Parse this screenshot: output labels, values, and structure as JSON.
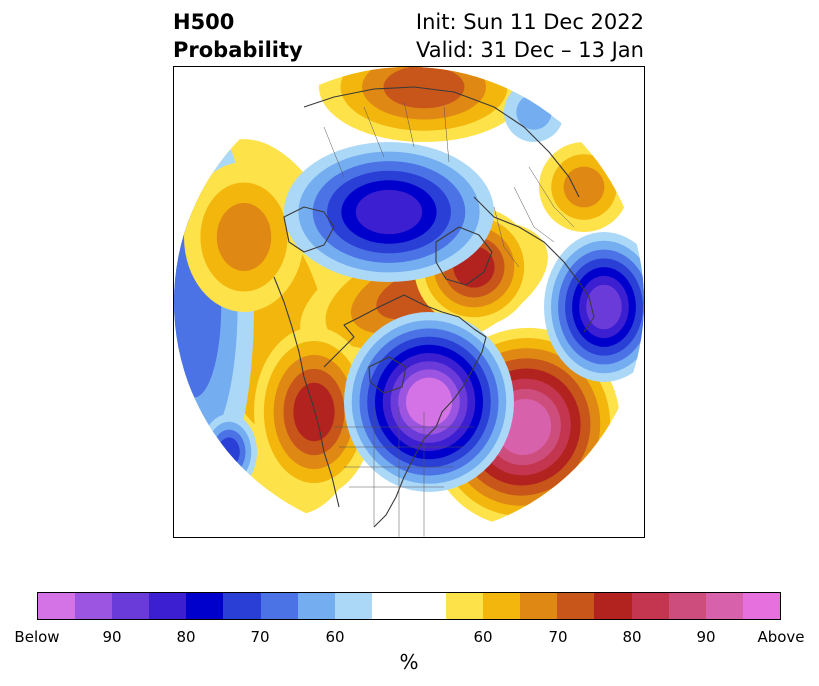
{
  "title": {
    "left": "H500\nProbability",
    "right": "Init: Sun 11 Dec 2022\nValid: 31 Dec – 13 Jan"
  },
  "colors": {
    "below": [
      "#d473e6",
      "#9b55e0",
      "#6a3bd8",
      "#3b1fd0",
      "#0000cc",
      "#2a3fd6",
      "#4b73e6",
      "#74aef0",
      "#acd8f8"
    ],
    "neutral": "#ffffff",
    "above": [
      "#fde24a",
      "#f2b60c",
      "#df8813",
      "#c8561a",
      "#b2231f",
      "#c43650",
      "#cd4e7c",
      "#d861ab",
      "#e670dd"
    ]
  },
  "colorbar": {
    "ticks": [
      "Below",
      "90",
      "80",
      "70",
      "60",
      "60",
      "70",
      "80",
      "90",
      "Above"
    ],
    "unit": "%"
  }
}
